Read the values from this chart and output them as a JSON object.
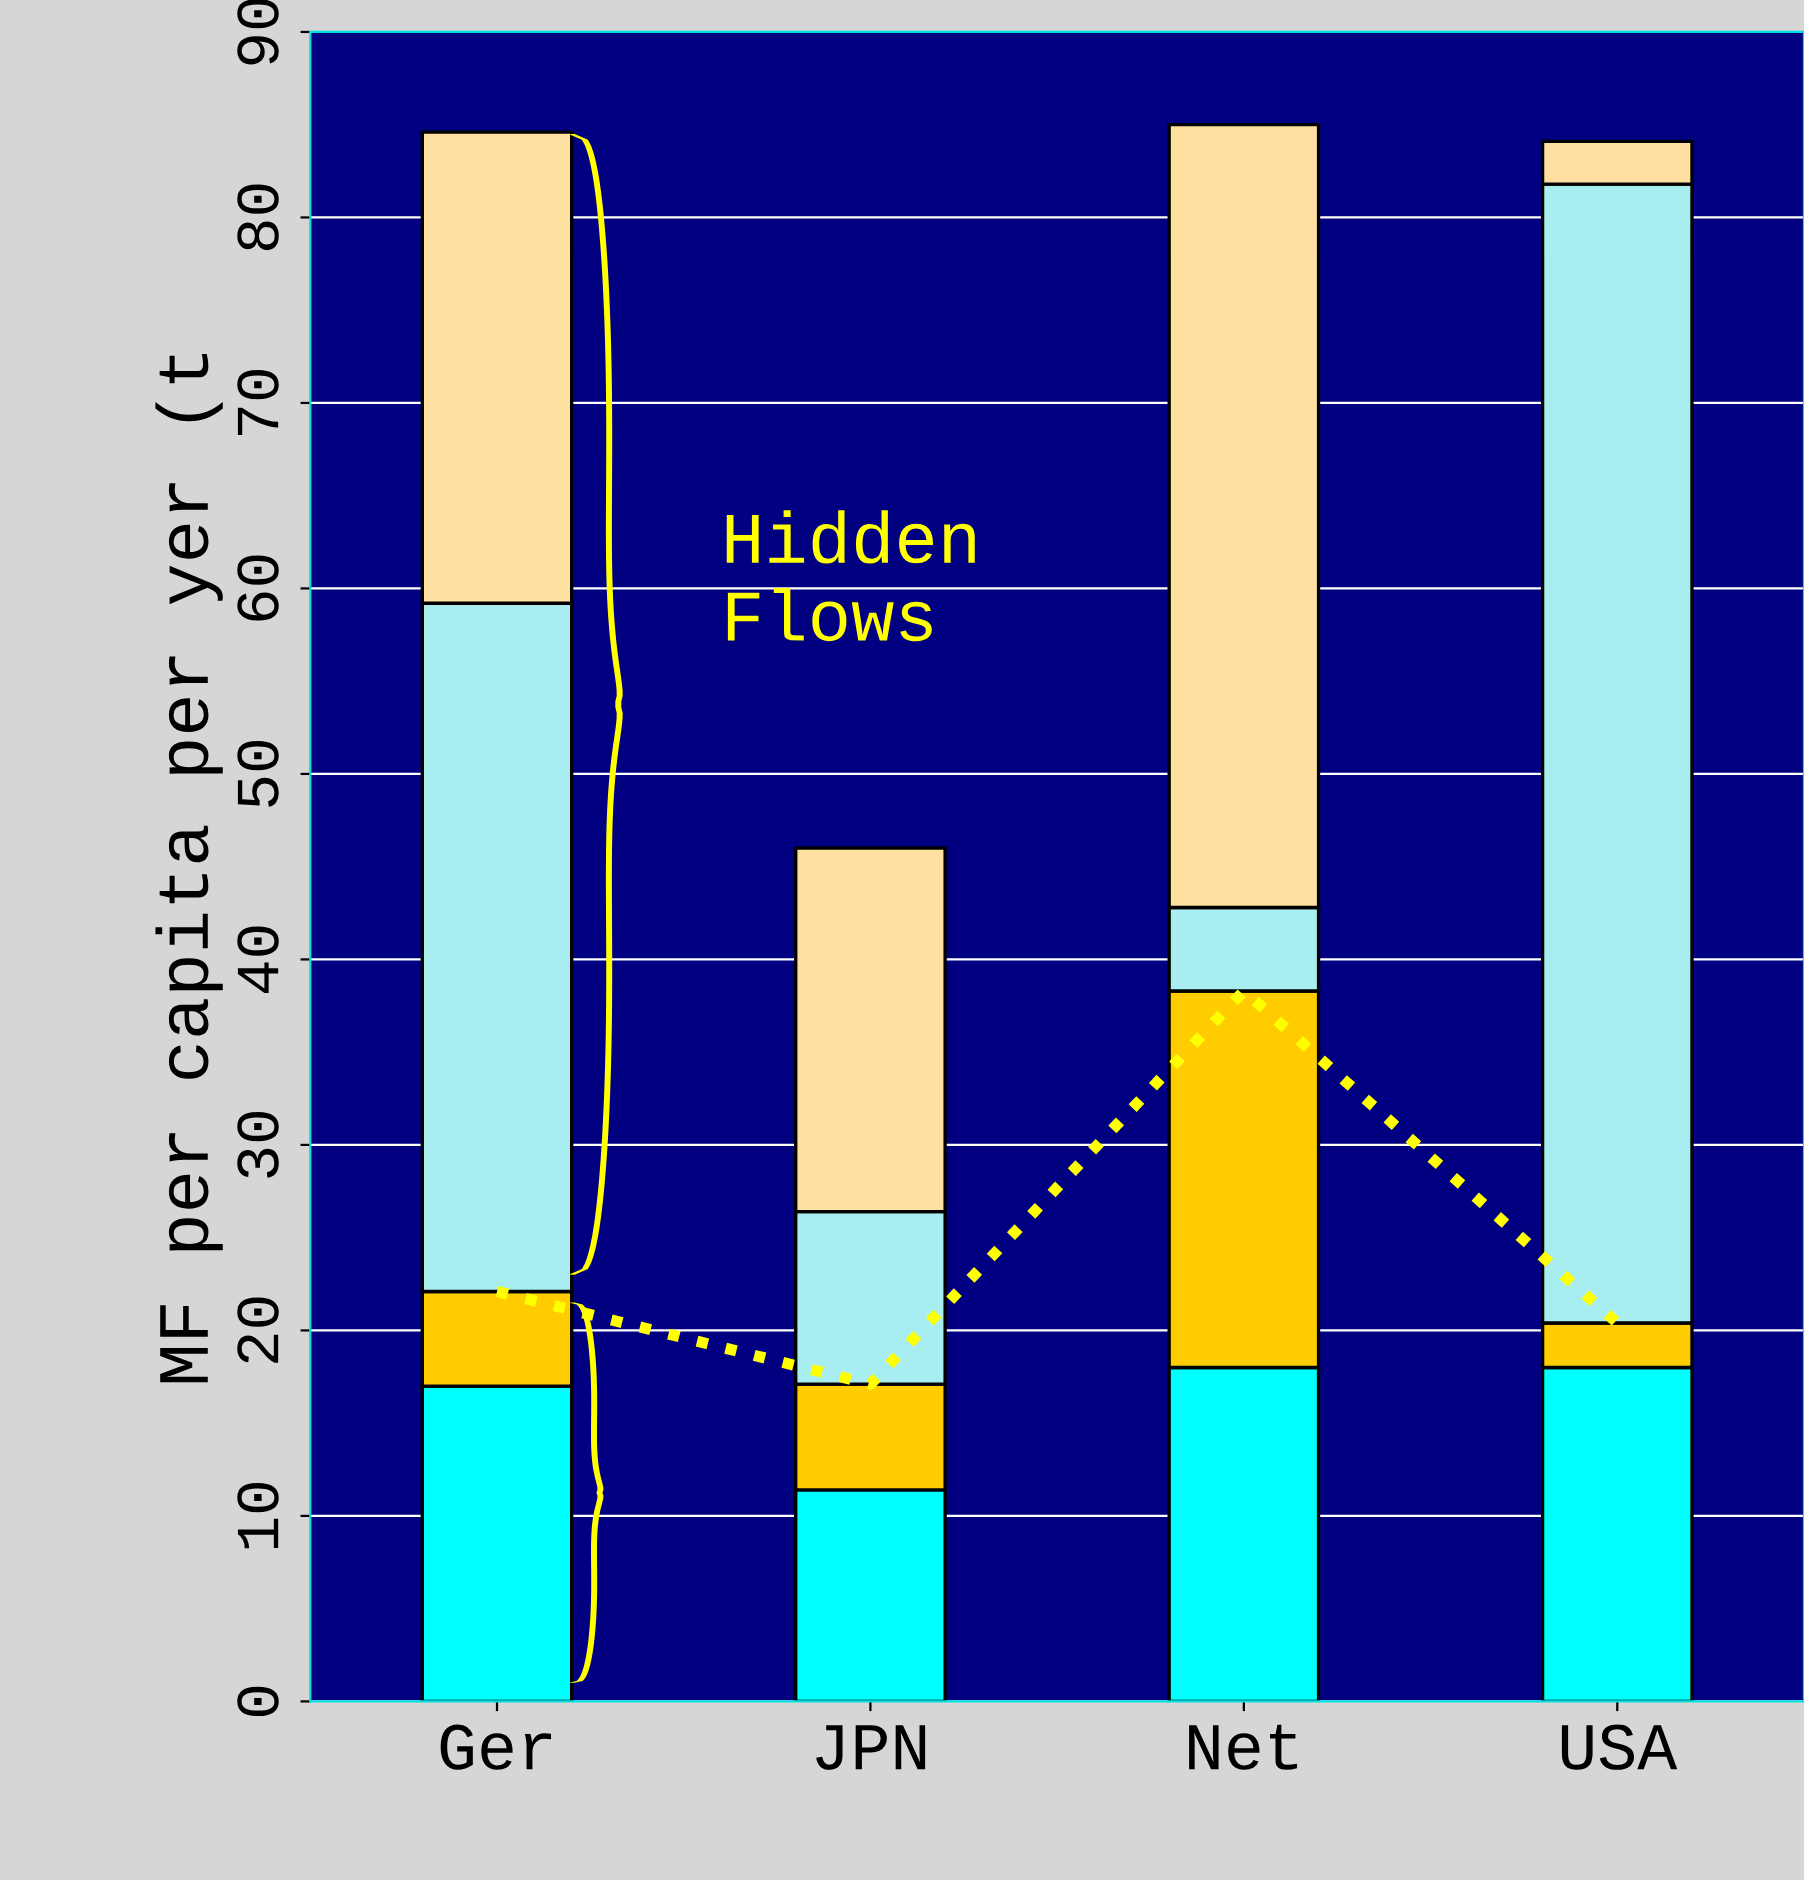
{
  "chart_data": {
    "type": "bar",
    "stacked": true,
    "ylabel": "MF per capita per yer (t",
    "categories": [
      "Ger",
      "JPN",
      "Net",
      "USA"
    ],
    "series": [
      {
        "color": "#00ffff",
        "values": [
          17.0,
          11.4,
          18.0,
          18.0
        ]
      },
      {
        "color": "#ffcc00",
        "values": [
          5.1,
          5.7,
          20.3,
          2.4
        ]
      },
      {
        "color": "#a8eef0",
        "values": [
          37.1,
          9.3,
          4.5,
          61.4
        ]
      },
      {
        "color": "#ffe0a0",
        "values": [
          25.4,
          19.6,
          42.2,
          2.3
        ]
      },
      {
        "type": "line",
        "color": "#ffff00",
        "line_style": "dotted",
        "values": [
          22.1,
          17.1,
          38.3,
          20.4
        ]
      }
    ],
    "ylim": [
      0,
      90
    ],
    "yticks": [
      0,
      10,
      20,
      30,
      40,
      50,
      60,
      70,
      80,
      90
    ],
    "grid": "y",
    "annotations": [
      "Hidden Flows"
    ]
  }
}
